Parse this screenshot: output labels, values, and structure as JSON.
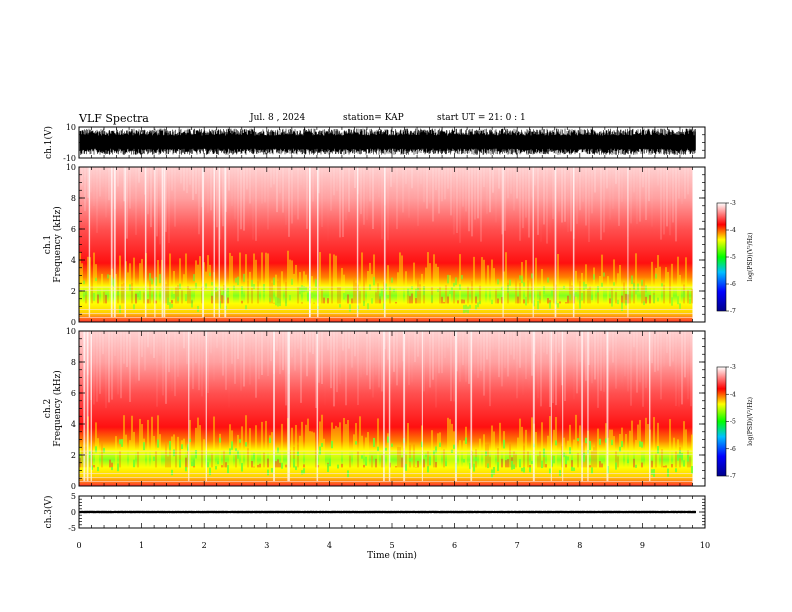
{
  "header": {
    "title": "VLF Spectra",
    "date": "Jul. 8 , 2024",
    "station": "station= KAP",
    "start": "start UT =  21: 0  : 1"
  },
  "chart_data": [
    {
      "type": "line",
      "id": "ch1-waveform",
      "ylabel": "ch.1(V)",
      "ylim": [
        -10,
        10
      ],
      "yticks": [
        10,
        -10
      ],
      "xlim": [
        0,
        10
      ],
      "description_values": {
        "typical_amplitude_range": [
          -8,
          9
        ]
      }
    },
    {
      "type": "heatmap",
      "id": "ch1-spectrogram",
      "ylabel_lines": [
        "ch.1",
        "Frequency  (kHz)"
      ],
      "ylim": [
        0,
        10
      ],
      "yticks": [
        0,
        2,
        4,
        6,
        8,
        10
      ],
      "xlim": [
        0,
        9.8
      ],
      "colorbar": {
        "label": "log(PSD)(V²/Hz)",
        "range": [
          -7,
          -3
        ],
        "ticks": [
          -3,
          -4,
          -5,
          -6,
          -7
        ]
      }
    },
    {
      "type": "heatmap",
      "id": "ch2-spectrogram",
      "ylabel_lines": [
        "ch.2",
        "Frequency  (kHz)"
      ],
      "ylim": [
        0,
        10
      ],
      "yticks": [
        0,
        2,
        4,
        6,
        8,
        10
      ],
      "xlim": [
        0,
        9.8
      ],
      "colorbar": {
        "label": "log(PSD)(V²/Hz)",
        "range": [
          -7,
          -3
        ],
        "ticks": [
          -3,
          -4,
          -5,
          -6,
          -7
        ]
      }
    },
    {
      "type": "line",
      "id": "ch3-waveform",
      "ylabel": "ch.3(V)",
      "ylim": [
        -5,
        5
      ],
      "yticks": [
        5,
        0,
        -5
      ],
      "xlim": [
        0,
        10
      ],
      "description_values": {
        "typical_amplitude_range": [
          -0.4,
          0.4
        ]
      }
    }
  ],
  "xaxis": {
    "label": "Time  (min)",
    "ticks": [
      0,
      1,
      2,
      3,
      4,
      5,
      6,
      7,
      8,
      9,
      10
    ]
  },
  "colors": {
    "psd_high": "#ff0000",
    "psd_mid": "#ffff00",
    "psd_low": "#00ff00",
    "psd_lower": "#0000ff"
  }
}
